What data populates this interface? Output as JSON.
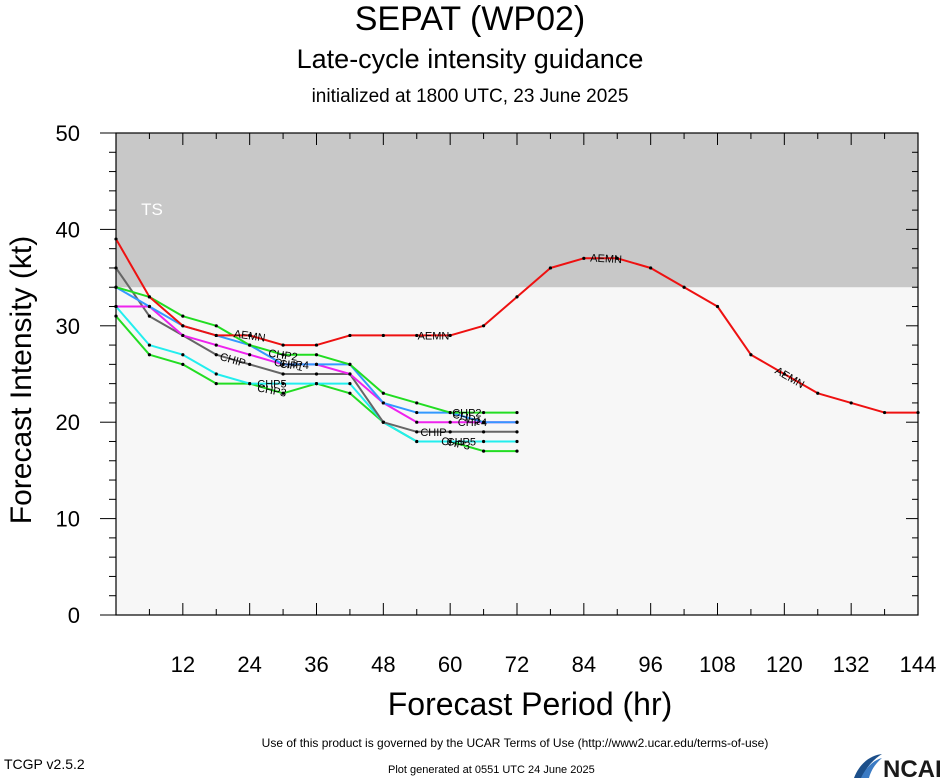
{
  "header": {
    "title": "SEPAT (WP02)",
    "subtitle": "Late-cycle intensity guidance",
    "initialized": "initialized at 1800 UTC, 23 June 2025"
  },
  "footer": {
    "terms": "Use of this product is governed by the UCAR Terms of Use (http://www2.ucar.edu/terms-of-use)",
    "version": "TCGP v2.5.2",
    "generated": "Plot generated at 0551 UTC   24 June 2025",
    "logo_text": "NCAR"
  },
  "colors": {
    "ts_band": "#c8c8c8",
    "plot_bg": "#f7f7f7",
    "aemn": "#ee1111",
    "green": "#22dd22",
    "blue": "#3399ff",
    "cyan": "#22eeee",
    "magenta": "#ee22ee",
    "gray": "#666666",
    "black": "#111111"
  },
  "chart_data": {
    "type": "line",
    "xlabel": "Forecast Period (hr)",
    "ylabel": "Forecast Intensity (kt)",
    "xlim": [
      0,
      144
    ],
    "ylim": [
      0,
      50
    ],
    "xticks": [
      12,
      24,
      36,
      48,
      60,
      72,
      84,
      96,
      108,
      120,
      132,
      144
    ],
    "yticks": [
      0,
      10,
      20,
      30,
      40,
      50
    ],
    "band": {
      "label": "TS",
      "from": 34,
      "to": 50
    },
    "series": [
      {
        "name": "AEMN",
        "color_key": "aemn",
        "x": [
          0,
          6,
          12,
          18,
          24,
          30,
          36,
          42,
          48,
          54,
          60,
          66,
          72,
          78,
          84,
          90,
          96,
          102,
          108,
          114,
          120,
          126,
          132,
          138,
          144
        ],
        "y": [
          39,
          33,
          30,
          29,
          29,
          28,
          28,
          29,
          29,
          29,
          29,
          30,
          33,
          36,
          37,
          37,
          36,
          34,
          32,
          27,
          25,
          23,
          22,
          21,
          21
        ],
        "label_x": [
          24,
          57,
          88,
          121
        ]
      },
      {
        "name": "CHP2",
        "color_key": "green",
        "x": [
          0,
          6,
          12,
          18,
          24,
          30,
          36,
          42,
          48,
          54,
          60,
          66,
          72
        ],
        "y": [
          34,
          33,
          31,
          30,
          28,
          27,
          27,
          26,
          23,
          22,
          21,
          21,
          21
        ],
        "label_x": [
          30,
          63
        ]
      },
      {
        "name": "CHP1",
        "color_key": "blue",
        "x": [
          0,
          6,
          12,
          18,
          24,
          30,
          36,
          42,
          48,
          54,
          60,
          66,
          72
        ],
        "y": [
          34,
          32,
          30,
          29,
          28,
          26,
          26,
          26,
          22,
          21,
          21,
          20,
          20
        ],
        "label_x": [
          31,
          63
        ]
      },
      {
        "name": "CHP4",
        "color_key": "magenta",
        "x": [
          0,
          6,
          12,
          18,
          24,
          30,
          36,
          42,
          48,
          54,
          60,
          66,
          72
        ],
        "y": [
          32,
          32,
          29,
          28,
          27,
          26,
          26,
          25,
          22,
          20,
          20,
          20,
          20
        ],
        "label_x": [
          32,
          64
        ]
      },
      {
        "name": "CHIP",
        "color_key": "gray",
        "x": [
          0,
          6,
          12,
          18,
          24,
          30,
          36,
          42,
          48,
          54,
          60,
          66,
          72
        ],
        "y": [
          36,
          31,
          29,
          27,
          26,
          25,
          25,
          25,
          20,
          19,
          19,
          19,
          19
        ],
        "label_x": [
          21,
          57
        ]
      },
      {
        "name": "CHP5",
        "color_key": "cyan",
        "x": [
          0,
          6,
          12,
          18,
          24,
          30,
          36,
          42,
          48,
          54,
          60,
          66,
          72
        ],
        "y": [
          32,
          28,
          27,
          25,
          24,
          24,
          24,
          24,
          20,
          18,
          18,
          18,
          18
        ],
        "label_x": [
          28,
          62
        ]
      },
      {
        "name": "CHP3",
        "color_key": "green",
        "x": [
          0,
          6,
          12,
          18,
          24,
          30,
          36,
          42,
          48,
          54,
          60,
          66,
          72
        ],
        "y": [
          31,
          27,
          26,
          24,
          24,
          23,
          24,
          23,
          20,
          18,
          18,
          17,
          17
        ],
        "label_x": [
          28,
          61
        ]
      }
    ]
  }
}
